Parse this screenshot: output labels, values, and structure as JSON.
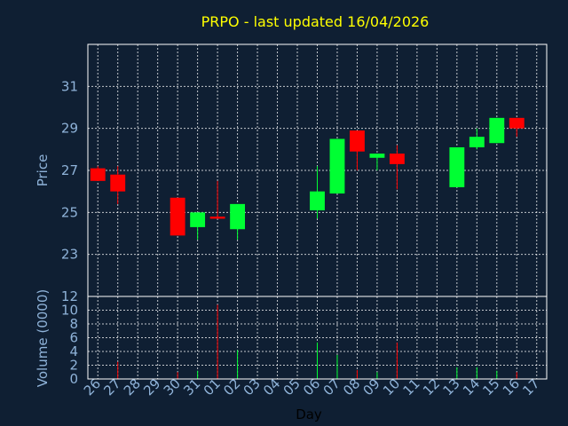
{
  "chart_data": {
    "type": "candlestick",
    "title": "PRPO - last updated 16/04/2026",
    "xlabel": "Day",
    "ylabel": "Price",
    "volume_label": "Volume (0000)",
    "x_ticks": [
      "26",
      "27",
      "28",
      "29",
      "30",
      "31",
      "01",
      "02",
      "03",
      "04",
      "05",
      "06",
      "07",
      "08",
      "09",
      "10",
      "11",
      "12",
      "13",
      "14",
      "15",
      "16",
      "17"
    ],
    "price_ticks": [
      23,
      25,
      27,
      29,
      31
    ],
    "volume_ticks": [
      0,
      2,
      4,
      6,
      8,
      10,
      12
    ],
    "ylim": [
      21,
      33
    ],
    "volume_ylim": [
      0,
      12
    ],
    "grid": true,
    "colors": {
      "up": "#00ff33",
      "down": "#ff0000",
      "title": "#ffff00",
      "axis_text": "#8fb3d9",
      "background": "#0f1f33"
    },
    "candles": [
      {
        "day": "26",
        "open": 27.1,
        "close": 26.5,
        "high": 27.2,
        "low": 26.5,
        "volume": 0.0
      },
      {
        "day": "27",
        "open": 26.8,
        "close": 26.0,
        "high": 27.2,
        "low": 25.4,
        "volume": 2.5
      },
      {
        "day": "30",
        "open": 25.7,
        "close": 23.9,
        "high": 25.7,
        "low": 23.9,
        "volume": 1.0
      },
      {
        "day": "31",
        "open": 24.3,
        "close": 25.0,
        "high": 25.0,
        "low": 23.7,
        "volume": 1.2
      },
      {
        "day": "01",
        "open": 24.8,
        "close": 24.7,
        "high": 26.5,
        "low": 24.7,
        "volume": 10.8
      },
      {
        "day": "02",
        "open": 24.2,
        "close": 25.4,
        "high": 25.4,
        "low": 23.7,
        "volume": 4.2
      },
      {
        "day": "06",
        "open": 25.1,
        "close": 26.0,
        "high": 27.2,
        "low": 24.7,
        "volume": 5.3
      },
      {
        "day": "07",
        "open": 25.9,
        "close": 28.5,
        "high": 28.5,
        "low": 25.9,
        "volume": 3.5
      },
      {
        "day": "08",
        "open": 28.9,
        "close": 27.9,
        "high": 28.9,
        "low": 27.0,
        "volume": 1.3
      },
      {
        "day": "09",
        "open": 27.6,
        "close": 27.8,
        "high": 27.8,
        "low": 27.0,
        "volume": 1.0
      },
      {
        "day": "10",
        "open": 27.8,
        "close": 27.3,
        "high": 28.2,
        "low": 26.1,
        "volume": 5.3
      },
      {
        "day": "13",
        "open": 26.2,
        "close": 28.1,
        "high": 28.1,
        "low": 26.2,
        "volume": 1.7
      },
      {
        "day": "14",
        "open": 28.1,
        "close": 28.6,
        "high": 29.0,
        "low": 28.0,
        "volume": 1.7
      },
      {
        "day": "15",
        "open": 28.3,
        "close": 29.5,
        "high": 29.5,
        "low": 28.3,
        "volume": 1.2
      },
      {
        "day": "16",
        "open": 29.5,
        "close": 29.0,
        "high": 29.5,
        "low": 28.6,
        "volume": 1.0
      }
    ]
  }
}
